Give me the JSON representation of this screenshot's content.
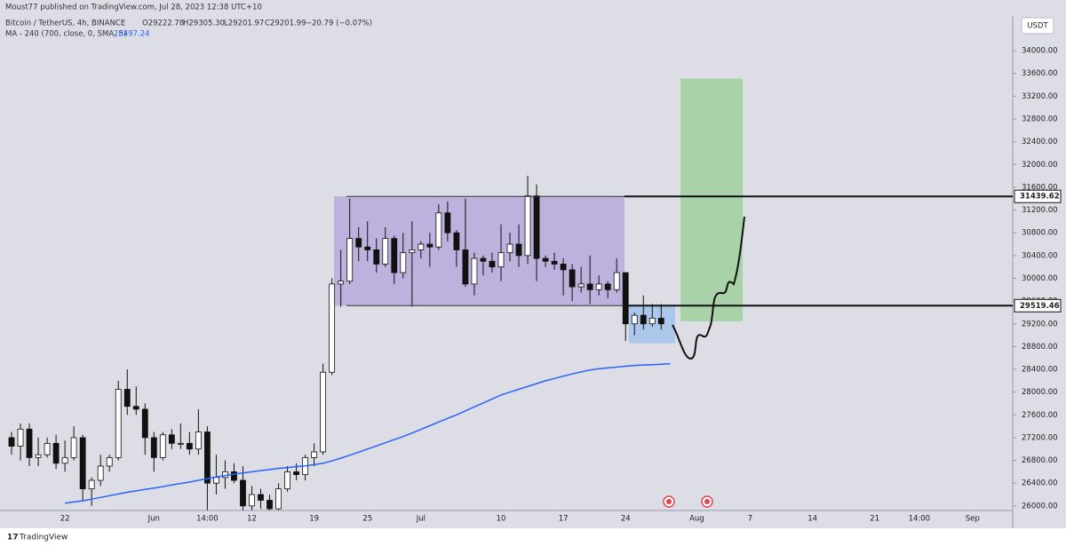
{
  "chart_data": {
    "type": "candlestick",
    "published": "Moust77 published on TradingView.com, Jul 28, 2023 12:38 UTC+10",
    "symbol": "Bitcoin / TetherUS, 4h, BINANCE",
    "ohlc": [
      "O29222.78",
      "H29305.30",
      "L29201.97",
      "C29201.99"
    ],
    "change": "−20.79 (−0.07%)",
    "currency": "USDT",
    "branding": "TradingView",
    "grid": false,
    "ylim": [
      25920,
      34610
    ],
    "yticks": [
      {
        "value": 26000,
        "label": "26000.00"
      },
      {
        "value": 26400,
        "label": "26400.00"
      },
      {
        "value": 26800,
        "label": "26800.00"
      },
      {
        "value": 27200,
        "label": "27200.00"
      },
      {
        "value": 27600,
        "label": "27600.00"
      },
      {
        "value": 28000,
        "label": "28000.00"
      },
      {
        "value": 28400,
        "label": "28400.00"
      },
      {
        "value": 28800,
        "label": "28800.00"
      },
      {
        "value": 29200,
        "label": "29200.00"
      },
      {
        "value": 29600,
        "label": "29600.00"
      },
      {
        "value": 30000,
        "label": "30000.00"
      },
      {
        "value": 30400,
        "label": "30400.00"
      },
      {
        "value": 30800,
        "label": "30800.00"
      },
      {
        "value": 31200,
        "label": "31200.00"
      },
      {
        "value": 31600,
        "label": "31600.00"
      },
      {
        "value": 32000,
        "label": "32000.00"
      },
      {
        "value": 32400,
        "label": "32400.00"
      },
      {
        "value": 32800,
        "label": "32800.00"
      },
      {
        "value": 33200,
        "label": "33200.00"
      },
      {
        "value": 33600,
        "label": "33600.00"
      },
      {
        "value": 34000,
        "label": "34000.00"
      }
    ],
    "categories": [
      null,
      null,
      null,
      null,
      null,
      null,
      "22",
      null,
      null,
      null,
      null,
      null,
      null,
      null,
      null,
      null,
      "Jun",
      null,
      null,
      null,
      null,
      null,
      "14:00",
      null,
      null,
      null,
      null,
      "12",
      null,
      null,
      null,
      null,
      null,
      null,
      "19",
      null,
      null,
      null,
      null,
      null,
      "25",
      null,
      null,
      null,
      null,
      null,
      "Jul",
      null,
      null,
      null,
      null,
      null,
      null,
      null,
      null,
      "10",
      null,
      null,
      null,
      null,
      null,
      null,
      "17",
      null,
      null,
      null,
      null,
      null,
      null,
      "24",
      null,
      null,
      null,
      null,
      null,
      null,
      null,
      "Aug",
      null,
      null,
      null,
      null,
      null,
      "7",
      null,
      null,
      null,
      null,
      null,
      null,
      "14",
      null,
      null,
      null,
      null,
      null,
      null,
      "21",
      null,
      null,
      null,
      null,
      "14:00",
      null,
      null,
      null,
      null,
      null,
      "Sep",
      null,
      null,
      null,
      null
    ],
    "open": [
      27200,
      27050,
      27350,
      26850,
      26900,
      27100,
      26750,
      26850,
      27200,
      26300,
      26450,
      26700,
      26850,
      28050,
      27750,
      27700,
      27200,
      26850,
      27250,
      27100,
      27100,
      27000,
      27300,
      26400,
      26500,
      26600,
      26450,
      26000,
      26200,
      26100,
      25950,
      26300,
      26600,
      26550,
      26850,
      26950,
      28350,
      29900,
      29950,
      30700,
      30550,
      30500,
      30250,
      30700,
      30100,
      30450,
      30500,
      30600,
      30550,
      31150,
      30800,
      30500,
      29900,
      30350,
      30300,
      30200,
      30450,
      30600,
      30400,
      31450,
      30350,
      30300,
      30250,
      30150,
      29850,
      29900,
      29800,
      29900,
      29800,
      30100,
      29200,
      29350,
      29200,
      29300,
      null,
      null,
      null,
      null,
      null,
      null,
      null,
      null,
      null,
      null,
      null,
      null,
      null,
      null,
      null,
      null,
      null,
      null,
      null,
      null,
      null,
      null,
      null,
      null,
      null,
      null,
      null,
      null,
      null,
      null,
      null,
      null,
      null,
      null,
      null,
      null,
      null,
      null,
      null
    ],
    "high": [
      27300,
      27450,
      27450,
      27200,
      27200,
      27250,
      27150,
      27400,
      27250,
      26500,
      26900,
      26900,
      28200,
      28400,
      28100,
      27800,
      27300,
      27300,
      27350,
      27450,
      27300,
      27700,
      27400,
      26900,
      26800,
      26750,
      26700,
      26350,
      26300,
      26200,
      26400,
      26700,
      26750,
      26900,
      27100,
      28500,
      30000,
      30500,
      31400,
      30900,
      31000,
      30700,
      30900,
      30750,
      30800,
      31000,
      30650,
      30800,
      31300,
      31350,
      30850,
      31400,
      30450,
      30400,
      30450,
      30950,
      30800,
      30950,
      31800,
      31650,
      30400,
      30450,
      30350,
      30250,
      30200,
      30400,
      30050,
      29950,
      30350,
      30100,
      29400,
      29700,
      29550,
      29550,
      null,
      null,
      null,
      null,
      null,
      null,
      null,
      null,
      null,
      null,
      null,
      null,
      null,
      null,
      null,
      null,
      null,
      null,
      null,
      null,
      null,
      null,
      null,
      null,
      null,
      null,
      null,
      null,
      null,
      null,
      null,
      null,
      null,
      null,
      null,
      null,
      null,
      null,
      null
    ],
    "low": [
      26900,
      26800,
      26700,
      26700,
      26850,
      26650,
      26600,
      26800,
      26100,
      26000,
      26350,
      26600,
      26800,
      27600,
      27600,
      26900,
      26600,
      26800,
      27000,
      27000,
      26900,
      26900,
      25900,
      26200,
      26300,
      26400,
      25900,
      25900,
      25950,
      25900,
      25900,
      26250,
      26450,
      26450,
      26700,
      26900,
      28300,
      29500,
      29900,
      30300,
      30300,
      30100,
      30200,
      29900,
      30000,
      29500,
      30350,
      30200,
      30500,
      30650,
      30200,
      29850,
      29700,
      30050,
      30100,
      29950,
      30300,
      30200,
      30250,
      29950,
      30200,
      30150,
      29700,
      29600,
      29750,
      29550,
      29700,
      29650,
      29750,
      28900,
      29000,
      29100,
      29150,
      29100,
      null,
      null,
      null,
      null,
      null,
      null,
      null,
      null,
      null,
      null,
      null,
      null,
      null,
      null,
      null,
      null,
      null,
      null,
      null,
      null,
      null,
      null,
      null,
      null,
      null,
      null,
      null,
      null,
      null,
      null,
      null,
      null,
      null,
      null,
      null,
      null,
      null,
      null,
      null
    ],
    "close": [
      27050,
      27350,
      26850,
      26900,
      27100,
      26750,
      26850,
      27200,
      26300,
      26450,
      26700,
      26850,
      28050,
      27750,
      27700,
      27200,
      26850,
      27250,
      27100,
      27100,
      27000,
      27300,
      26400,
      26500,
      26600,
      26450,
      26000,
      26200,
      26100,
      25950,
      26300,
      26600,
      26550,
      26850,
      26950,
      28350,
      29900,
      29950,
      30700,
      30550,
      30500,
      30250,
      30700,
      30100,
      30450,
      30500,
      30600,
      30550,
      31150,
      30800,
      30500,
      29900,
      30350,
      30300,
      30200,
      30450,
      30600,
      30400,
      31450,
      30350,
      30300,
      30250,
      30150,
      29850,
      29900,
      29800,
      29900,
      29800,
      30100,
      29200,
      29350,
      29200,
      29300,
      29200,
      null,
      null,
      null,
      null,
      null,
      null,
      null,
      null,
      null,
      null,
      null,
      null,
      null,
      null,
      null,
      null,
      null,
      null,
      null,
      null,
      null,
      null,
      null,
      null,
      null,
      null,
      null,
      null,
      null,
      null,
      null,
      null,
      null,
      null,
      null,
      null,
      null,
      null,
      null
    ],
    "overlays": [
      {
        "type": "line",
        "name": "MA - 240 (700, close, 0, SMA, 5)",
        "color": "#2962ff",
        "last_value": 28497.24,
        "values": [
          null,
          null,
          null,
          null,
          null,
          null,
          26050,
          26070,
          26090,
          26120,
          26150,
          26180,
          26210,
          26240,
          26265,
          26290,
          26315,
          26340,
          26370,
          26395,
          26420,
          26450,
          26480,
          26510,
          26535,
          26560,
          26580,
          26600,
          26620,
          26640,
          26660,
          26675,
          26690,
          26705,
          26725,
          26750,
          26790,
          26840,
          26890,
          26945,
          27000,
          27055,
          27110,
          27165,
          27220,
          27280,
          27345,
          27410,
          27475,
          27540,
          27600,
          27670,
          27740,
          27810,
          27880,
          27950,
          28000,
          28050,
          28100,
          28150,
          28200,
          28240,
          28280,
          28320,
          28355,
          28390,
          28410,
          28425,
          28440,
          28455,
          28470,
          28477,
          28484,
          28491,
          28497.24,
          null,
          null,
          null,
          null,
          null,
          null,
          null,
          null,
          null,
          null,
          null,
          null,
          null,
          null,
          null,
          null,
          null,
          null,
          null,
          null,
          null,
          null,
          null,
          null,
          null,
          null,
          null,
          null,
          null,
          null,
          null,
          null,
          null,
          null,
          null,
          null,
          null,
          null
        ]
      }
    ],
    "levels": [
      31439.62,
      29519.46
    ],
    "boxes": [
      {
        "color": "#b9acdc",
        "top": 31439.62,
        "bottom": 29519.46
      },
      {
        "color": "#a6c4ec",
        "top": 29519.46,
        "bottom": 28860
      },
      {
        "color": "#a3d0a1",
        "top": 33510,
        "bottom": 29245
      }
    ]
  }
}
